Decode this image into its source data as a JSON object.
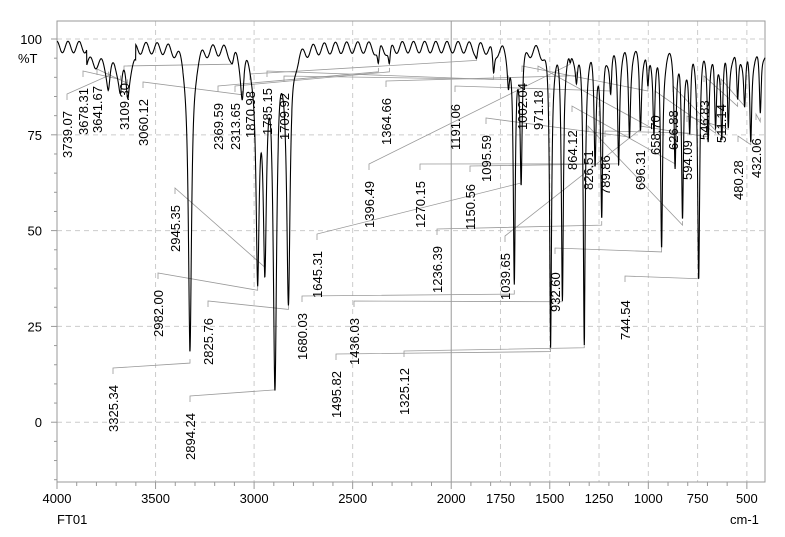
{
  "chart_data": {
    "type": "line",
    "title": "",
    "ylabel": "%T",
    "xlabel": "cm-1",
    "sample_label": "FT01",
    "xlim": [
      4000,
      408
    ],
    "ylim": [
      -15.6,
      104.7
    ],
    "xticks": [
      4000,
      3500,
      3000,
      2500,
      2000,
      1750,
      1500,
      1250,
      1000,
      750,
      500
    ],
    "xtick_labels": [
      "4000",
      "3500",
      "3000",
      "2500",
      "2000",
      "1750",
      "1500",
      "1250",
      "1000",
      "750",
      "500"
    ],
    "yticks": [
      100,
      75,
      50,
      25,
      0
    ],
    "ytick_labels": [
      "100",
      "75",
      "50",
      "25",
      "0"
    ],
    "grid": true,
    "series": [
      {
        "name": "FT01",
        "color": "#000000"
      }
    ],
    "peaks": [
      {
        "x": 3739.07,
        "t": 92,
        "label": "3739.07"
      },
      {
        "x": 3678.31,
        "t": 91,
        "label": "3678.31"
      },
      {
        "x": 3641.67,
        "t": 90,
        "label": "3641.67"
      },
      {
        "x": 3325.34,
        "t": 17,
        "label": "3325.34"
      },
      {
        "x": 3109.3,
        "t": 95,
        "label": "3109.30"
      },
      {
        "x": 3060.12,
        "t": 87,
        "label": "3060.12"
      },
      {
        "x": 2982.0,
        "t": 36,
        "label": "2982.00"
      },
      {
        "x": 2945.35,
        "t": 42,
        "label": "2945.35"
      },
      {
        "x": 2894.24,
        "t": 10,
        "label": "2894.24"
      },
      {
        "x": 2825.76,
        "t": 31,
        "label": "2825.76"
      },
      {
        "x": 2369.59,
        "t": 93,
        "label": "2369.59"
      },
      {
        "x": 2313.65,
        "t": 93,
        "label": "2313.65"
      },
      {
        "x": 1870.98,
        "t": 96,
        "label": "1870.98"
      },
      {
        "x": 1785.15,
        "t": 91,
        "label": "1785.15"
      },
      {
        "x": 1709.92,
        "t": 91,
        "label": "1709.92"
      },
      {
        "x": 1680.03,
        "t": 35,
        "label": "1680.03"
      },
      {
        "x": 1645.31,
        "t": 64,
        "label": "1645.31"
      },
      {
        "x": 1495.82,
        "t": 20,
        "label": "1495.82"
      },
      {
        "x": 1436.03,
        "t": 33,
        "label": "1436.03"
      },
      {
        "x": 1396.49,
        "t": 95,
        "label": "1396.49"
      },
      {
        "x": 1364.66,
        "t": 92,
        "label": "1364.66"
      },
      {
        "x": 1325.12,
        "t": 21,
        "label": "1325.12"
      },
      {
        "x": 1270.15,
        "t": 69,
        "label": "1270.15"
      },
      {
        "x": 1236.39,
        "t": 53,
        "label": "1236.39"
      },
      {
        "x": 1191.06,
        "t": 88,
        "label": "1191.06"
      },
      {
        "x": 1150.56,
        "t": 69,
        "label": "1150.56"
      },
      {
        "x": 1095.59,
        "t": 76,
        "label": "1095.59"
      },
      {
        "x": 1039.65,
        "t": 78,
        "label": "1039.65"
      },
      {
        "x": 1002.04,
        "t": 88,
        "label": "1002.04"
      },
      {
        "x": 971.18,
        "t": 78,
        "label": "971.18"
      },
      {
        "x": 932.6,
        "t": 46,
        "label": "932.60"
      },
      {
        "x": 864.12,
        "t": 69,
        "label": "864.12"
      },
      {
        "x": 826.51,
        "t": 53,
        "label": "826.51"
      },
      {
        "x": 789.86,
        "t": 77,
        "label": "789.86"
      },
      {
        "x": 744.54,
        "t": 39,
        "label": "744.54"
      },
      {
        "x": 696.31,
        "t": 76,
        "label": "696.31"
      },
      {
        "x": 658.7,
        "t": 77,
        "label": "658.70"
      },
      {
        "x": 626.88,
        "t": 76,
        "label": "626.88"
      },
      {
        "x": 594.09,
        "t": 78,
        "label": "594.09"
      },
      {
        "x": 546.83,
        "t": 84,
        "label": "546.83"
      },
      {
        "x": 511.14,
        "t": 84,
        "label": "511.14"
      },
      {
        "x": 480.28,
        "t": 74,
        "label": "480.28"
      },
      {
        "x": 432.06,
        "t": 80,
        "label": "432.06"
      }
    ]
  }
}
